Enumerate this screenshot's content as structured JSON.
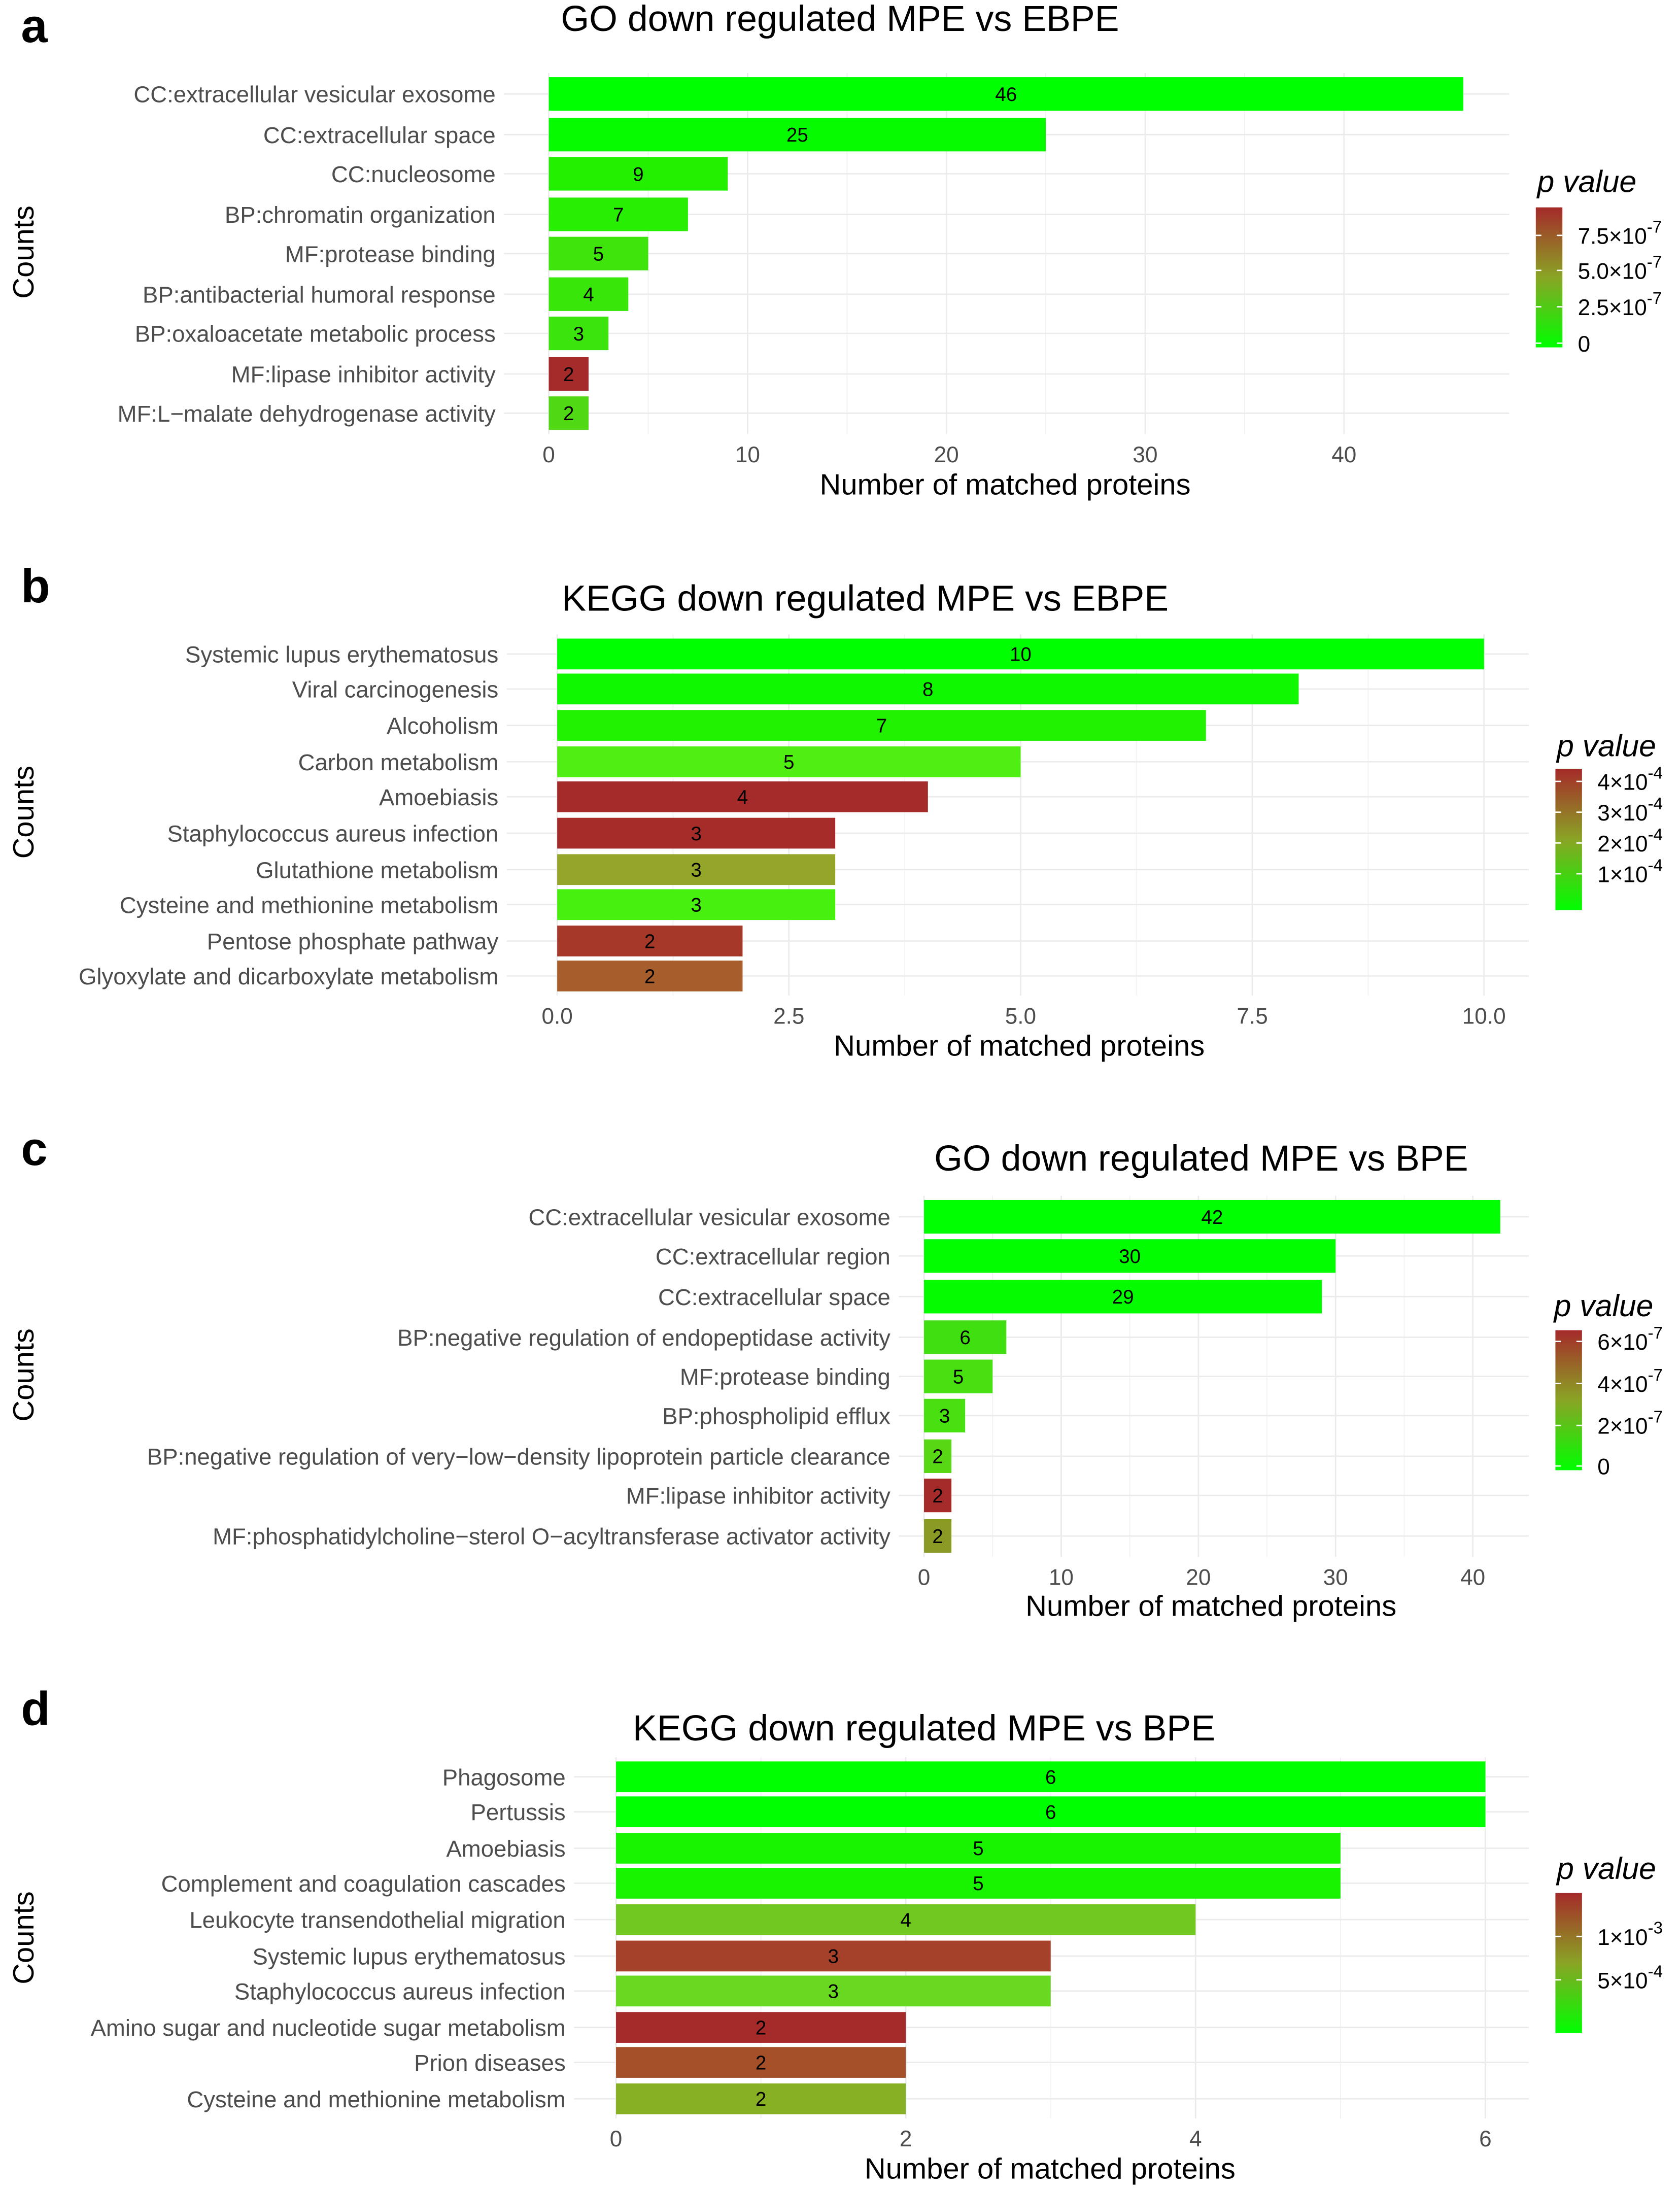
{
  "chart_data": [
    {
      "panel": "a",
      "type": "bar",
      "orientation": "horizontal",
      "title": "GO down regulated MPE vs EBPE",
      "xlabel": "Number of matched proteins",
      "ylabel": "Counts",
      "xlim": [
        0,
        48.3
      ],
      "xticks": [
        0,
        10,
        20,
        30,
        40
      ],
      "xtick_labels": [
        "0",
        "10",
        "20",
        "30",
        "40"
      ],
      "categories": [
        "CC:extracellular vesicular exosome",
        "CC:extracellular space",
        "CC:nucleosome",
        "BP:chromatin organization",
        "MF:protease binding",
        "BP:antibacterial humoral response",
        "BP:oxaloacetate metabolic process",
        "MF:lipase inhibitor activity",
        "MF:L−malate dehydrogenase activity"
      ],
      "values": [
        46,
        25,
        9,
        7,
        5,
        4,
        3,
        2,
        2
      ],
      "colors": [
        "#00ff00",
        "#06fb00",
        "#22f000",
        "#28ee04",
        "#3ee40c",
        "#38e60a",
        "#3ae40c",
        "#a52a2a",
        "#50d814"
      ],
      "legend": {
        "title": "p value",
        "ticks": [
          [
            "7.5×10",
            "-7"
          ],
          [
            "5.0×10",
            "-7"
          ],
          [
            "2.5×10",
            "-7"
          ],
          [
            "0",
            ""
          ]
        ]
      }
    },
    {
      "panel": "b",
      "type": "bar",
      "orientation": "horizontal",
      "title": "KEGG down regulated MPE vs EBPE",
      "xlabel": "Number of matched proteins",
      "ylabel": "Counts",
      "xlim": [
        0,
        10.5
      ],
      "xticks": [
        0,
        2.5,
        5,
        7.5,
        10
      ],
      "xtick_labels": [
        "0.0",
        "2.5",
        "5.0",
        "7.5",
        "10.0"
      ],
      "categories": [
        "Systemic lupus erythematosus",
        "Viral carcinogenesis",
        "Alcoholism",
        "Carbon metabolism",
        "Amoebiasis",
        "Staphylococcus aureus infection",
        "Glutathione metabolism",
        "Cysteine and methionine metabolism",
        "Pentose phosphate pathway",
        "Glyoxylate and dicarboxylate metabolism"
      ],
      "values": [
        10,
        8,
        7,
        5,
        4,
        3,
        3,
        3,
        2,
        2
      ],
      "colors": [
        "#00ff00",
        "#10f800",
        "#20f200",
        "#50ee12",
        "#a52a2a",
        "#a62c2a",
        "#95a52a",
        "#48f010",
        "#a6382a",
        "#a65e2c"
      ],
      "legend": {
        "title": "p value",
        "ticks": [
          [
            "4×10",
            "-4"
          ],
          [
            "3×10",
            "-4"
          ],
          [
            "2×10",
            "-4"
          ],
          [
            "1×10",
            "-4"
          ]
        ]
      }
    },
    {
      "panel": "c",
      "type": "bar",
      "orientation": "horizontal",
      "title": "GO down regulated MPE  vs BPE",
      "xlabel": "Number of matched proteins",
      "ylabel": "Counts",
      "xlim": [
        0,
        44.1
      ],
      "xticks": [
        0,
        10,
        20,
        30,
        40
      ],
      "xtick_labels": [
        "0",
        "10",
        "20",
        "30",
        "40"
      ],
      "categories": [
        "CC:extracellular vesicular exosome",
        "CC:extracellular region",
        "CC:extracellular space",
        "BP:negative regulation of endopeptidase activity",
        "MF:protease binding",
        "BP:phospholipid efflux",
        "BP:negative regulation of very−low−density lipoprotein particle clearance",
        "MF:lipase inhibitor activity",
        "MF:phosphatidylcholine−sterol O−acyltransferase activator activity"
      ],
      "values": [
        42,
        30,
        29,
        6,
        5,
        3,
        2,
        2,
        2
      ],
      "colors": [
        "#00ff00",
        "#02fd00",
        "#03fc00",
        "#40e010",
        "#48e010",
        "#48e010",
        "#58d815",
        "#a52a2a",
        "#8a9a25"
      ],
      "legend": {
        "title": "p value",
        "ticks": [
          [
            "6×10",
            "-7"
          ],
          [
            "4×10",
            "-7"
          ],
          [
            "2×10",
            "-7"
          ],
          [
            "0",
            ""
          ]
        ]
      }
    },
    {
      "panel": "d",
      "type": "bar",
      "orientation": "horizontal",
      "title": "KEGG down regulated MPE vs BPE",
      "xlabel": "Number of matched proteins",
      "ylabel": "Counts",
      "xlim": [
        0,
        6.3
      ],
      "xticks": [
        0,
        2,
        4,
        6
      ],
      "xtick_labels": [
        "0",
        "2",
        "4",
        "6"
      ],
      "categories": [
        "Phagosome",
        "Pertussis",
        "Amoebiasis",
        "Complement and coagulation cascades",
        "Leukocyte transendothelial migration",
        "Systemic lupus erythematosus",
        "Staphylococcus aureus infection",
        "Amino sugar and nucleotide sugar metabolism",
        "Prion diseases",
        "Cysteine and methionine metabolism"
      ],
      "values": [
        6,
        6,
        5,
        5,
        4,
        3,
        3,
        2,
        2,
        2
      ],
      "colors": [
        "#00ff00",
        "#00ff00",
        "#18f400",
        "#18f400",
        "#70c820",
        "#a5402a",
        "#68d820",
        "#a52a2a",
        "#a6502a",
        "#88b025"
      ],
      "legend": {
        "title": "p value",
        "ticks": [
          [
            "1×10",
            "-3"
          ],
          [
            "5×10",
            "-4"
          ]
        ]
      }
    }
  ],
  "gradient": {
    "low": "#00ff00",
    "high": "#a52a2a"
  }
}
